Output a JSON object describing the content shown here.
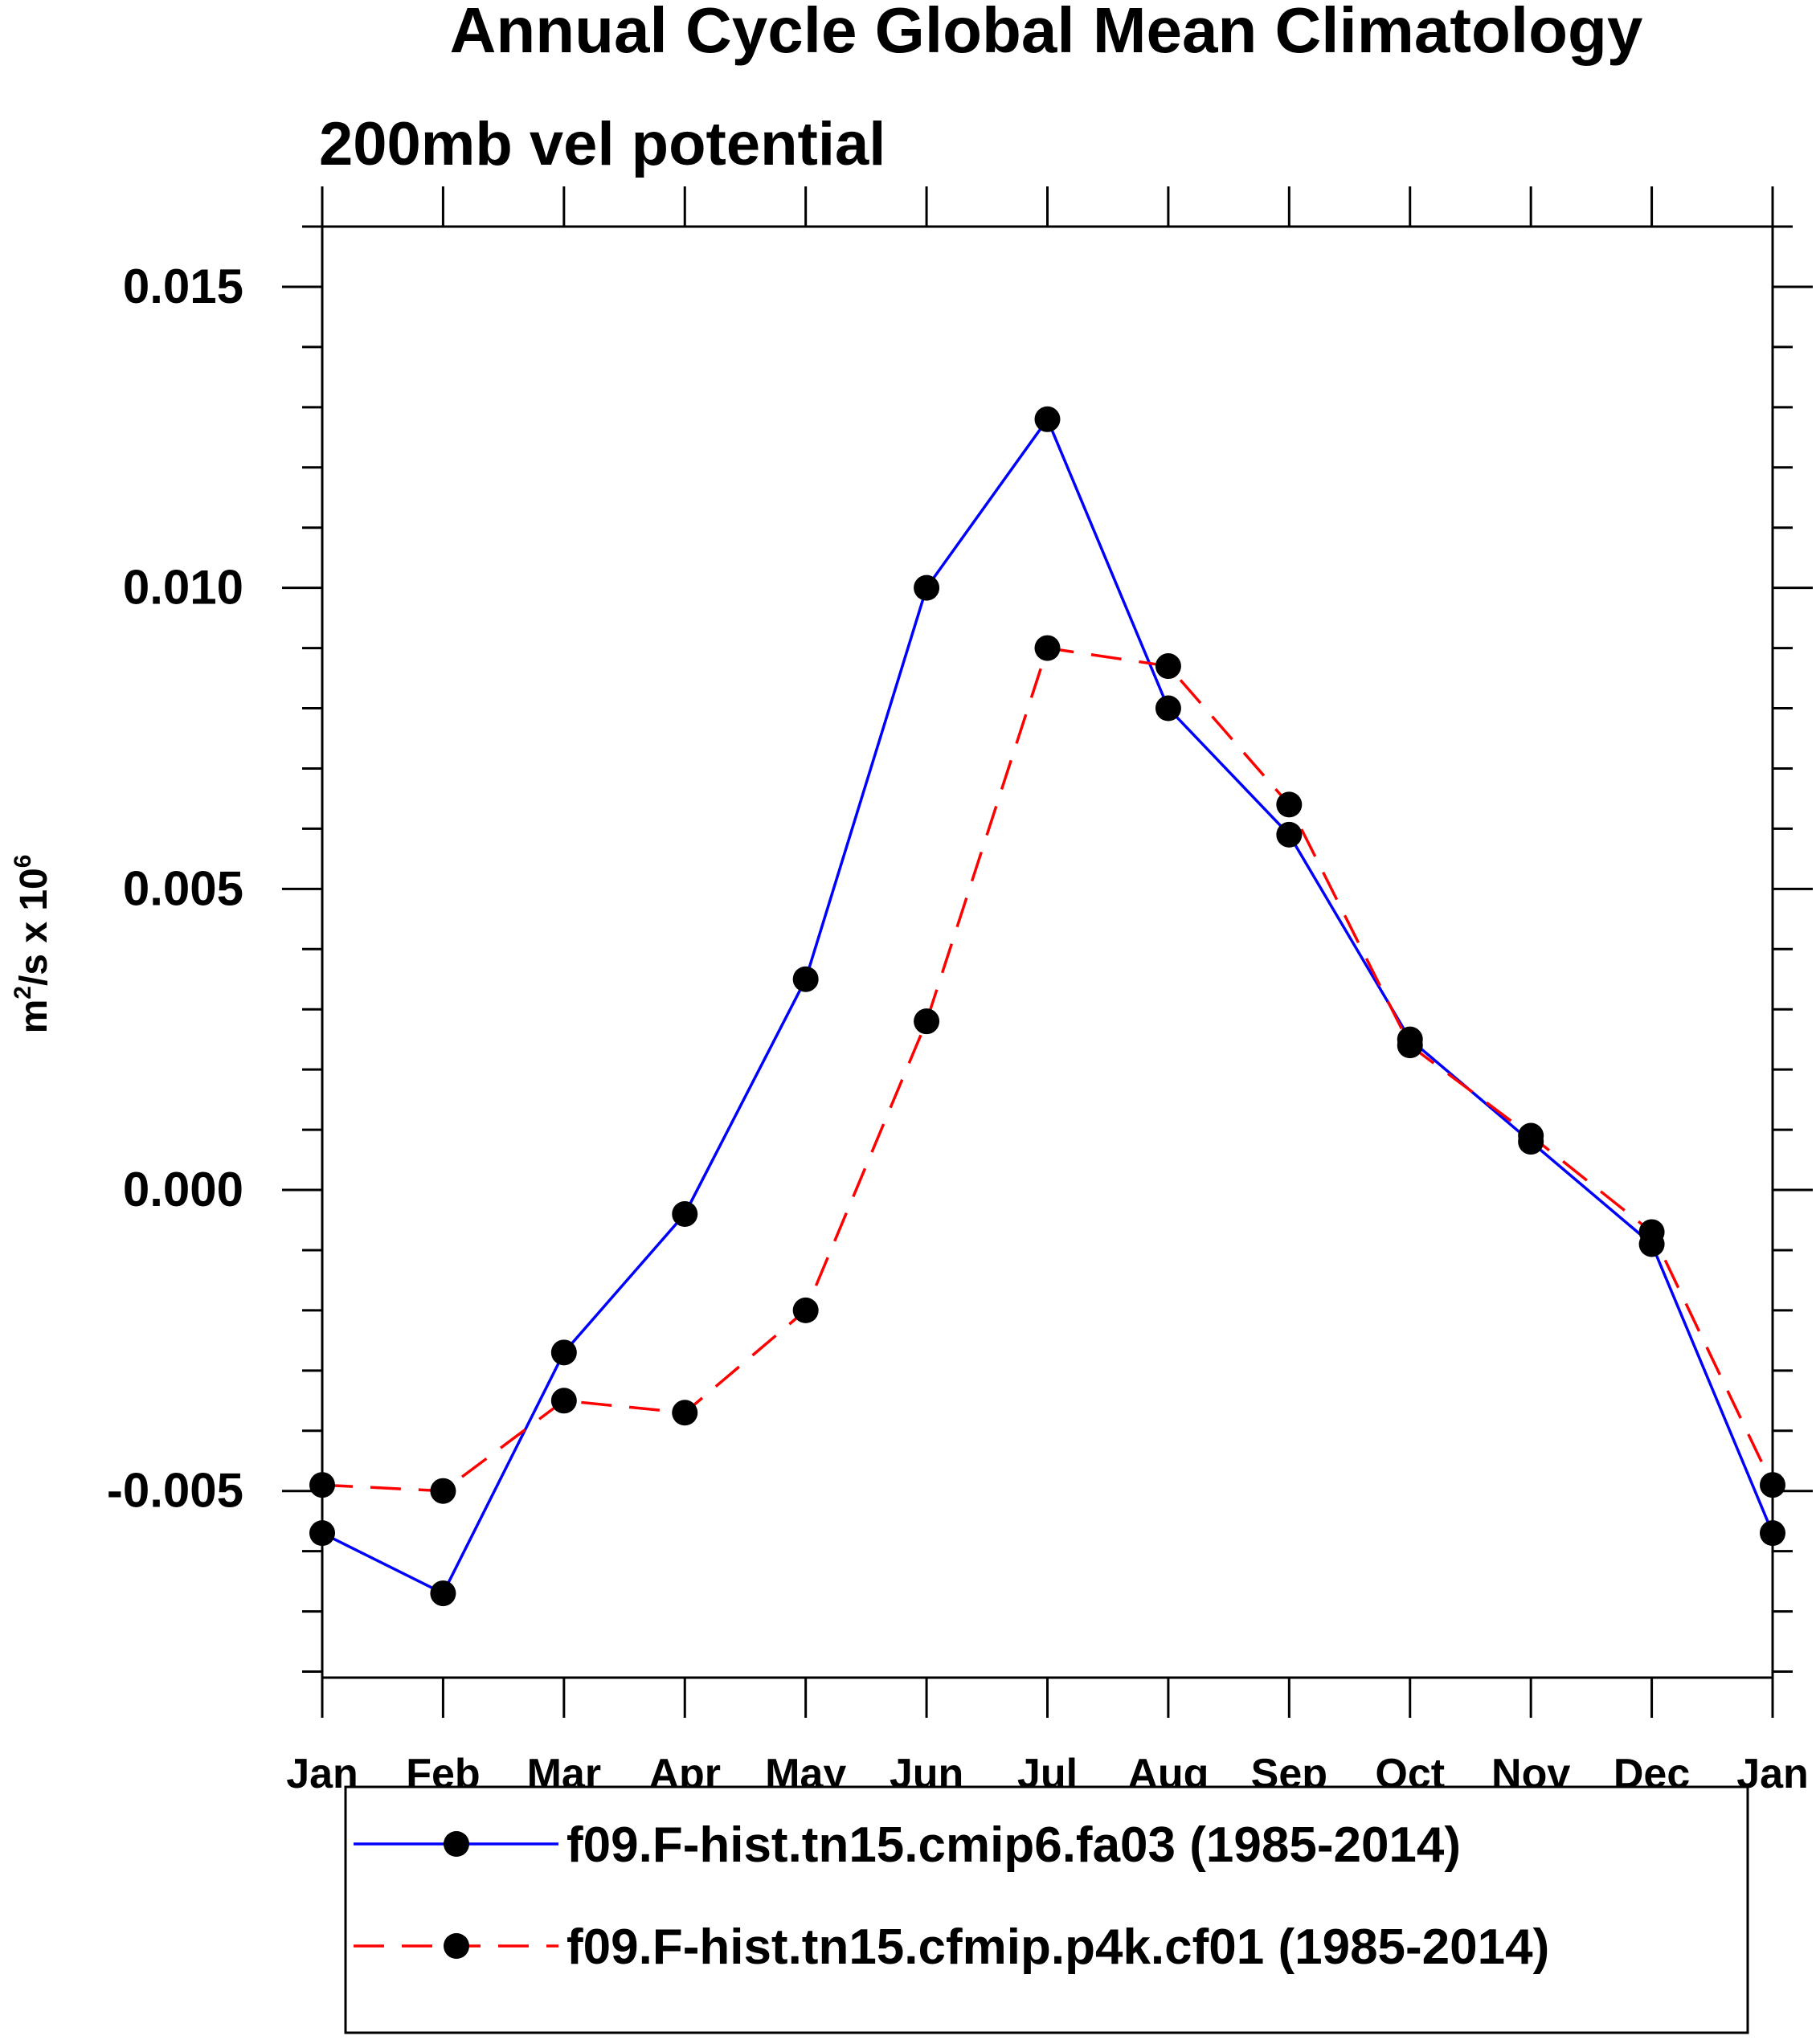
{
  "chart_data": {
    "type": "line",
    "title": "Annual Cycle Global Mean Climatology",
    "subtitle": "200mb vel potential",
    "ylabel": {
      "base": "m",
      "sup1": "2",
      "mid": "/s x 10",
      "sup2": "6"
    },
    "xlabel": "",
    "categories": [
      "Jan",
      "Feb",
      "Mar",
      "Apr",
      "May",
      "Jun",
      "Jul",
      "Aug",
      "Sep",
      "Oct",
      "Nov",
      "Dec",
      "Jan"
    ],
    "ylim": [
      -0.0081,
      0.016
    ],
    "yticks": [
      -0.005,
      0.0,
      0.005,
      0.01,
      0.015
    ],
    "ytick_labels": [
      "-0.005",
      "0.000",
      "0.005",
      "0.010",
      "0.015"
    ],
    "y_minor_step": 0.001,
    "grid": false,
    "legend_position": "bottom",
    "series": [
      {
        "name": "f09.F-hist.tn15.cmip6.fa03 (1985-2014)",
        "color": "#0000ff",
        "style": "solid",
        "marker": "circle",
        "values": [
          -0.0057,
          -0.0067,
          -0.0027,
          -0.0004,
          0.0035,
          0.01,
          0.0128,
          0.008,
          0.0059,
          0.0025,
          0.0008,
          -0.0009,
          -0.0057
        ]
      },
      {
        "name": "f09.F-hist.tn15.cfmip.p4k.cf01 (1985-2014)",
        "color": "#ff0000",
        "style": "dashed",
        "marker": "circle",
        "values": [
          -0.0049,
          -0.005,
          -0.0035,
          -0.0037,
          -0.002,
          0.0028,
          0.009,
          0.0087,
          0.0064,
          0.0024,
          0.0009,
          -0.0007,
          -0.0049
        ]
      }
    ]
  }
}
